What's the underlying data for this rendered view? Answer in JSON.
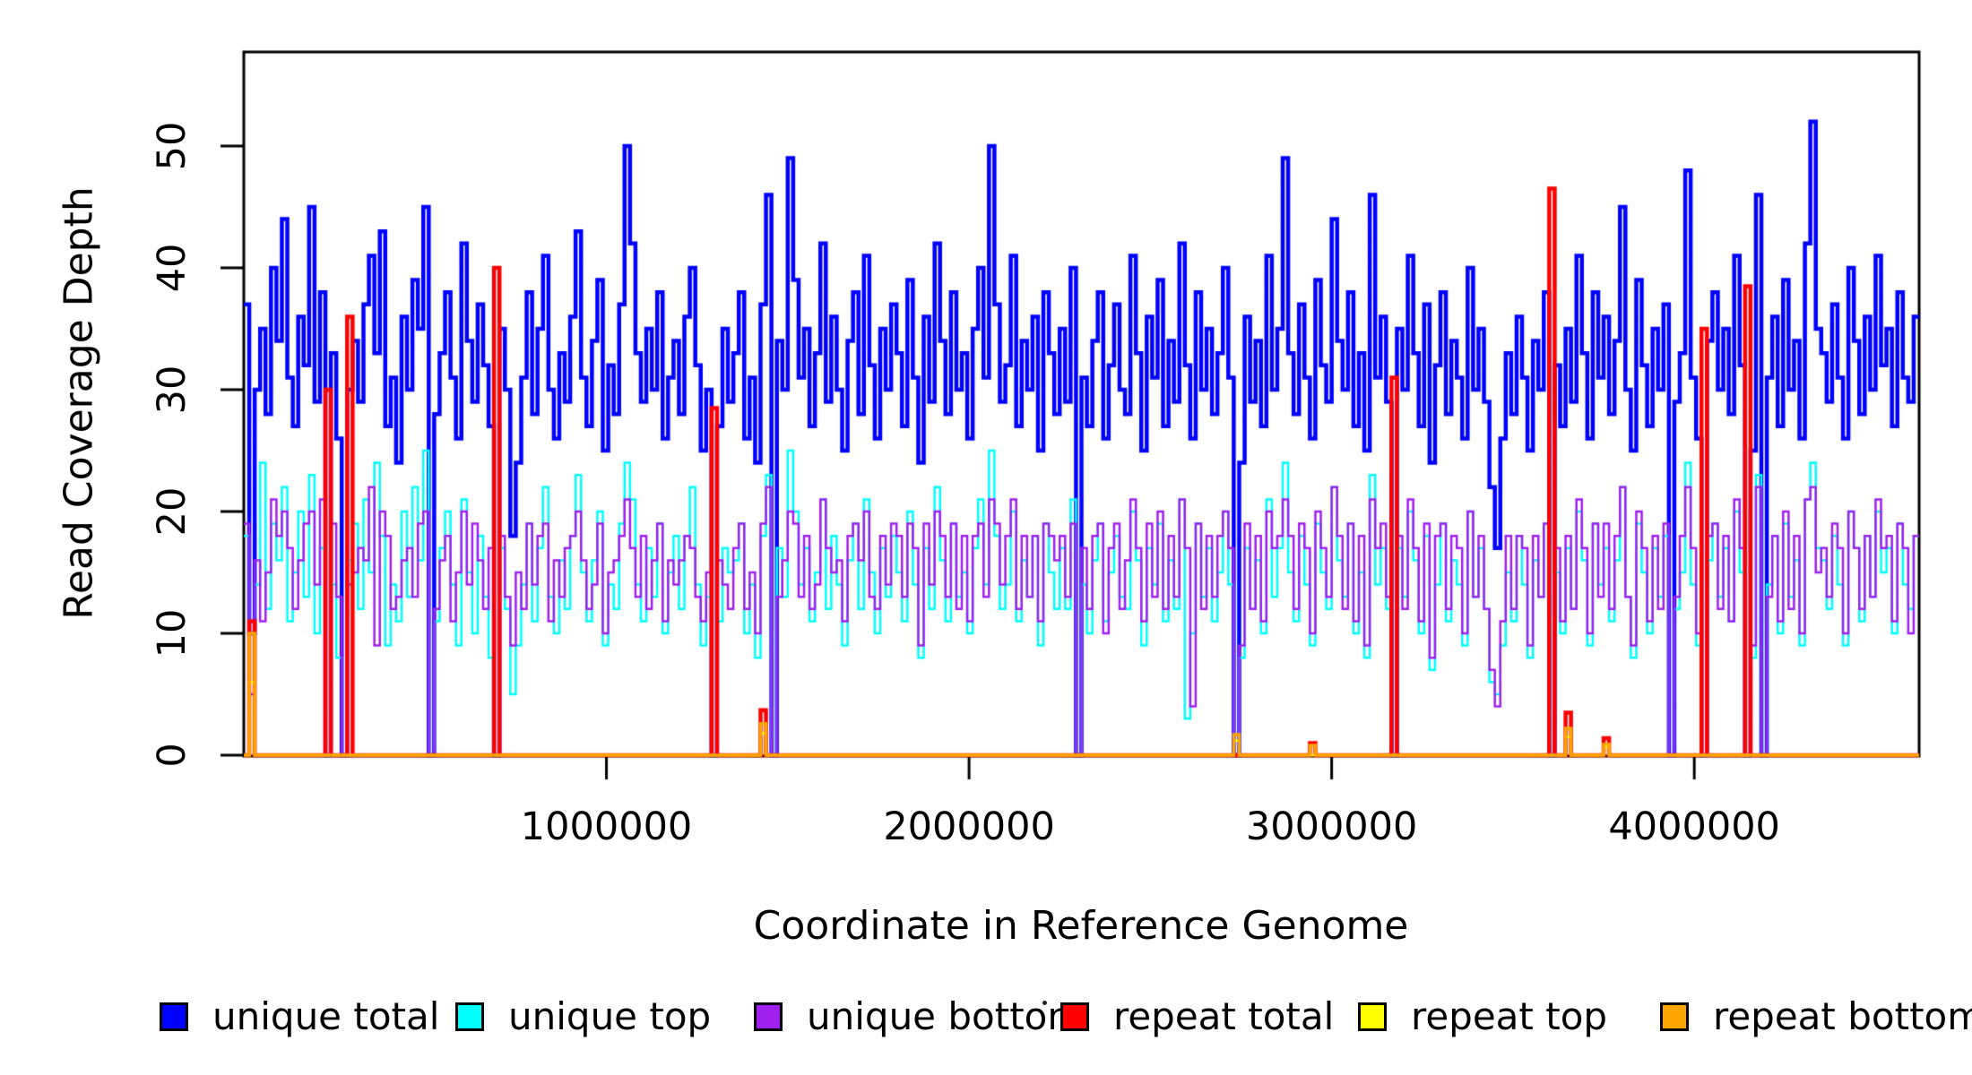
{
  "figure": {
    "background": "#ffffff",
    "text_color": "#000000"
  },
  "chart_data": {
    "type": "line",
    "subtype": "step",
    "title": "",
    "xlabel": "Coordinate in Reference Genome",
    "ylabel": "Read Coverage Depth",
    "xlim": [
      0,
      4620000
    ],
    "ylim": [
      0,
      57.5
    ],
    "grid": false,
    "legend_position": "bottom",
    "bin_size": 15000,
    "n_bins": 308,
    "x_ticks": [
      {
        "value": 1000000,
        "label": "1000000"
      },
      {
        "value": 2000000,
        "label": "2000000"
      },
      {
        "value": 3000000,
        "label": "3000000"
      },
      {
        "value": 4000000,
        "label": "4000000"
      }
    ],
    "y_ticks": [
      {
        "value": 0,
        "label": "0"
      },
      {
        "value": 10,
        "label": "10"
      },
      {
        "value": 20,
        "label": "20"
      },
      {
        "value": 30,
        "label": "30"
      },
      {
        "value": 40,
        "label": "40"
      },
      {
        "value": 50,
        "label": "50"
      }
    ],
    "series": [
      {
        "name": "unique total",
        "color": "#0000FF",
        "line_width": 4.5,
        "values": [
          37,
          10,
          30,
          35,
          28,
          40,
          34,
          44,
          31,
          27,
          36,
          32,
          45,
          29,
          38,
          0,
          33,
          26,
          0,
          30,
          34,
          29,
          37,
          41,
          33,
          43,
          27,
          31,
          24,
          36,
          30,
          39,
          35,
          45,
          0,
          28,
          33,
          38,
          31,
          26,
          42,
          34,
          29,
          37,
          32,
          27,
          0,
          35,
          30,
          18,
          24,
          31,
          38,
          28,
          35,
          41,
          30,
          26,
          33,
          29,
          36,
          43,
          31,
          27,
          34,
          39,
          25,
          32,
          28,
          37,
          50,
          42,
          33,
          29,
          35,
          30,
          38,
          26,
          31,
          34,
          28,
          36,
          40,
          32,
          25,
          30,
          0,
          27,
          35,
          29,
          33,
          38,
          26,
          31,
          24,
          37,
          46,
          0,
          34,
          30,
          49,
          39,
          31,
          35,
          27,
          33,
          42,
          29,
          36,
          30,
          25,
          34,
          38,
          28,
          41,
          32,
          26,
          35,
          30,
          37,
          33,
          27,
          39,
          31,
          24,
          36,
          29,
          42,
          34,
          28,
          38,
          30,
          33,
          26,
          35,
          40,
          31,
          50,
          37,
          29,
          32,
          41,
          27,
          34,
          30,
          36,
          25,
          38,
          33,
          28,
          35,
          29,
          40,
          0,
          31,
          27,
          34,
          38,
          26,
          32,
          37,
          30,
          28,
          41,
          33,
          25,
          36,
          31,
          39,
          27,
          34,
          29,
          42,
          32,
          26,
          38,
          30,
          35,
          28,
          33,
          40,
          31,
          0,
          24,
          36,
          29,
          34,
          27,
          41,
          30,
          35,
          49,
          33,
          28,
          37,
          31,
          26,
          39,
          32,
          29,
          44,
          34,
          30,
          38,
          27,
          33,
          25,
          46,
          31,
          36,
          29,
          0,
          35,
          30,
          41,
          33,
          27,
          37,
          24,
          32,
          38,
          28,
          34,
          31,
          26,
          40,
          30,
          35,
          29,
          22,
          17,
          26,
          33,
          28,
          36,
          31,
          25,
          34,
          30,
          38,
          0,
          32,
          27,
          35,
          29,
          41,
          33,
          26,
          38,
          31,
          36,
          28,
          34,
          45,
          30,
          25,
          39,
          32,
          27,
          35,
          30,
          37,
          0,
          29,
          33,
          48,
          31,
          26,
          0,
          34,
          38,
          30,
          35,
          28,
          41,
          32,
          0,
          25,
          46,
          0,
          31,
          36,
          27,
          39,
          30,
          34,
          26,
          42,
          52,
          35,
          33,
          29,
          37,
          31,
          26,
          40,
          34,
          28,
          36,
          30,
          41,
          32,
          35,
          27,
          38,
          31,
          29,
          36
        ]
      },
      {
        "name": "unique top",
        "color": "#00FFFF",
        "line_width": 2.5,
        "values": [
          18,
          5,
          14,
          24,
          12,
          19,
          16,
          22,
          11,
          15,
          20,
          13,
          23,
          10,
          17,
          0,
          14,
          8,
          0,
          16,
          19,
          12,
          21,
          15,
          24,
          18,
          9,
          14,
          11,
          20,
          13,
          22,
          16,
          25,
          0,
          11,
          17,
          20,
          14,
          9,
          21,
          15,
          10,
          18,
          13,
          8,
          0,
          17,
          12,
          5,
          9,
          14,
          19,
          11,
          17,
          22,
          13,
          10,
          16,
          12,
          18,
          23,
          15,
          11,
          16,
          20,
          9,
          14,
          12,
          19,
          24,
          21,
          14,
          11,
          17,
          13,
          19,
          10,
          15,
          18,
          12,
          18,
          22,
          14,
          9,
          13,
          0,
          11,
          17,
          15,
          16,
          19,
          10,
          14,
          8,
          18,
          23,
          0,
          17,
          13,
          25,
          20,
          14,
          17,
          11,
          15,
          21,
          12,
          18,
          14,
          9,
          16,
          19,
          12,
          21,
          15,
          10,
          17,
          13,
          18,
          15,
          11,
          20,
          14,
          8,
          17,
          12,
          22,
          16,
          11,
          19,
          13,
          15,
          10,
          17,
          21,
          14,
          25,
          18,
          12,
          14,
          20,
          11,
          16,
          13,
          18,
          9,
          19,
          15,
          12,
          17,
          12,
          21,
          0,
          14,
          10,
          16,
          19,
          11,
          15,
          18,
          13,
          12,
          20,
          16,
          9,
          17,
          14,
          19,
          11,
          16,
          12,
          21,
          3,
          10,
          19,
          13,
          17,
          11,
          15,
          20,
          14,
          0,
          8,
          17,
          12,
          16,
          10,
          21,
          13,
          17,
          24,
          15,
          11,
          18,
          14,
          9,
          19,
          15,
          12,
          22,
          16,
          13,
          19,
          10,
          15,
          8,
          23,
          14,
          17,
          12,
          0,
          17,
          13,
          20,
          16,
          10,
          18,
          7,
          14,
          19,
          11,
          16,
          14,
          9,
          20,
          13,
          17,
          12,
          6,
          5,
          9,
          15,
          11,
          18,
          14,
          8,
          16,
          13,
          19,
          0,
          15,
          10,
          17,
          12,
          20,
          16,
          9,
          19,
          14,
          17,
          11,
          16,
          22,
          13,
          8,
          19,
          15,
          10,
          17,
          13,
          18,
          0,
          12,
          15,
          24,
          14,
          9,
          0,
          16,
          19,
          13,
          17,
          11,
          20,
          15,
          0,
          8,
          23,
          0,
          14,
          18,
          10,
          19,
          13,
          16,
          9,
          21,
          24,
          17,
          16,
          12,
          18,
          14,
          9,
          20,
          17,
          11,
          18,
          13,
          20,
          15,
          17,
          10,
          19,
          14,
          12,
          18
        ]
      },
      {
        "name": "unique bottom",
        "color": "#A020F0",
        "line_width": 2.5,
        "values": [
          19,
          5,
          16,
          11,
          15,
          21,
          18,
          20,
          17,
          12,
          16,
          19,
          20,
          14,
          21,
          0,
          19,
          13,
          0,
          14,
          15,
          17,
          16,
          22,
          9,
          20,
          18,
          12,
          13,
          16,
          17,
          13,
          19,
          20,
          0,
          12,
          16,
          18,
          11,
          15,
          20,
          14,
          19,
          16,
          12,
          17,
          0,
          18,
          13,
          9,
          15,
          12,
          19,
          14,
          18,
          19,
          11,
          16,
          13,
          17,
          18,
          20,
          16,
          12,
          14,
          19,
          10,
          15,
          16,
          18,
          21,
          17,
          13,
          18,
          12,
          16,
          19,
          11,
          16,
          14,
          16,
          18,
          17,
          13,
          11,
          15,
          0,
          16,
          14,
          12,
          17,
          19,
          12,
          15,
          10,
          19,
          22,
          0,
          13,
          16,
          20,
          19,
          13,
          18,
          12,
          14,
          21,
          17,
          15,
          16,
          11,
          18,
          19,
          16,
          20,
          13,
          12,
          18,
          14,
          19,
          18,
          13,
          19,
          17,
          9,
          19,
          14,
          20,
          18,
          13,
          19,
          12,
          18,
          11,
          18,
          19,
          13,
          21,
          19,
          14,
          18,
          21,
          12,
          18,
          13,
          18,
          11,
          19,
          18,
          16,
          18,
          13,
          19,
          0,
          17,
          12,
          18,
          19,
          10,
          17,
          19,
          12,
          16,
          21,
          17,
          11,
          19,
          13,
          20,
          12,
          18,
          13,
          21,
          17,
          4,
          19,
          12,
          18,
          13,
          18,
          20,
          17,
          0,
          9,
          19,
          12,
          18,
          11,
          20,
          17,
          18,
          21,
          18,
          12,
          19,
          17,
          10,
          20,
          17,
          13,
          22,
          18,
          12,
          19,
          11,
          18,
          9,
          21,
          17,
          19,
          13,
          0,
          18,
          12,
          21,
          17,
          11,
          19,
          8,
          18,
          19,
          12,
          18,
          17,
          10,
          20,
          13,
          18,
          12,
          7,
          4,
          11,
          18,
          12,
          18,
          17,
          9,
          18,
          13,
          19,
          0,
          17,
          11,
          18,
          12,
          21,
          17,
          10,
          19,
          13,
          19,
          12,
          18,
          22,
          13,
          9,
          20,
          17,
          11,
          18,
          12,
          19,
          0,
          13,
          18,
          22,
          17,
          10,
          0,
          18,
          19,
          12,
          18,
          11,
          21,
          17,
          0,
          9,
          22,
          0,
          13,
          18,
          11,
          20,
          12,
          18,
          10,
          21,
          22,
          15,
          17,
          13,
          19,
          17,
          10,
          20,
          17,
          12,
          18,
          13,
          21,
          17,
          18,
          11,
          19,
          17,
          10,
          18
        ]
      },
      {
        "name": "repeat total",
        "color": "#FF0000",
        "line_width": 4.5,
        "baseline": 0,
        "spikes": [
          [
            1,
            11
          ],
          [
            15,
            30
          ],
          [
            19,
            36
          ],
          [
            46,
            40
          ],
          [
            86,
            28.5
          ],
          [
            95,
            3.7
          ],
          [
            196,
            1.0
          ],
          [
            211,
            31
          ],
          [
            240,
            46.5
          ],
          [
            243,
            3.5
          ],
          [
            250,
            1.4
          ],
          [
            268,
            35
          ],
          [
            276,
            38.5
          ]
        ]
      },
      {
        "name": "repeat top",
        "color": "#FFFF00",
        "line_width": 2.5,
        "baseline": 0,
        "spikes": [
          [
            1,
            6
          ],
          [
            95,
            1.8
          ],
          [
            182,
            1.2
          ],
          [
            243,
            1.5
          ],
          [
            250,
            0.7
          ]
        ]
      },
      {
        "name": "repeat bottom",
        "color": "#FFA500",
        "line_width": 3.5,
        "baseline": 0,
        "spikes": [
          [
            1,
            10
          ],
          [
            95,
            2.6
          ],
          [
            182,
            1.7
          ],
          [
            196,
            0.8
          ],
          [
            243,
            2.2
          ],
          [
            250,
            0.9
          ]
        ]
      }
    ]
  },
  "legend": {
    "swatch_border_color": "#000000",
    "item_lefts": [
      178,
      508,
      841,
      1183,
      1515,
      1852
    ]
  }
}
